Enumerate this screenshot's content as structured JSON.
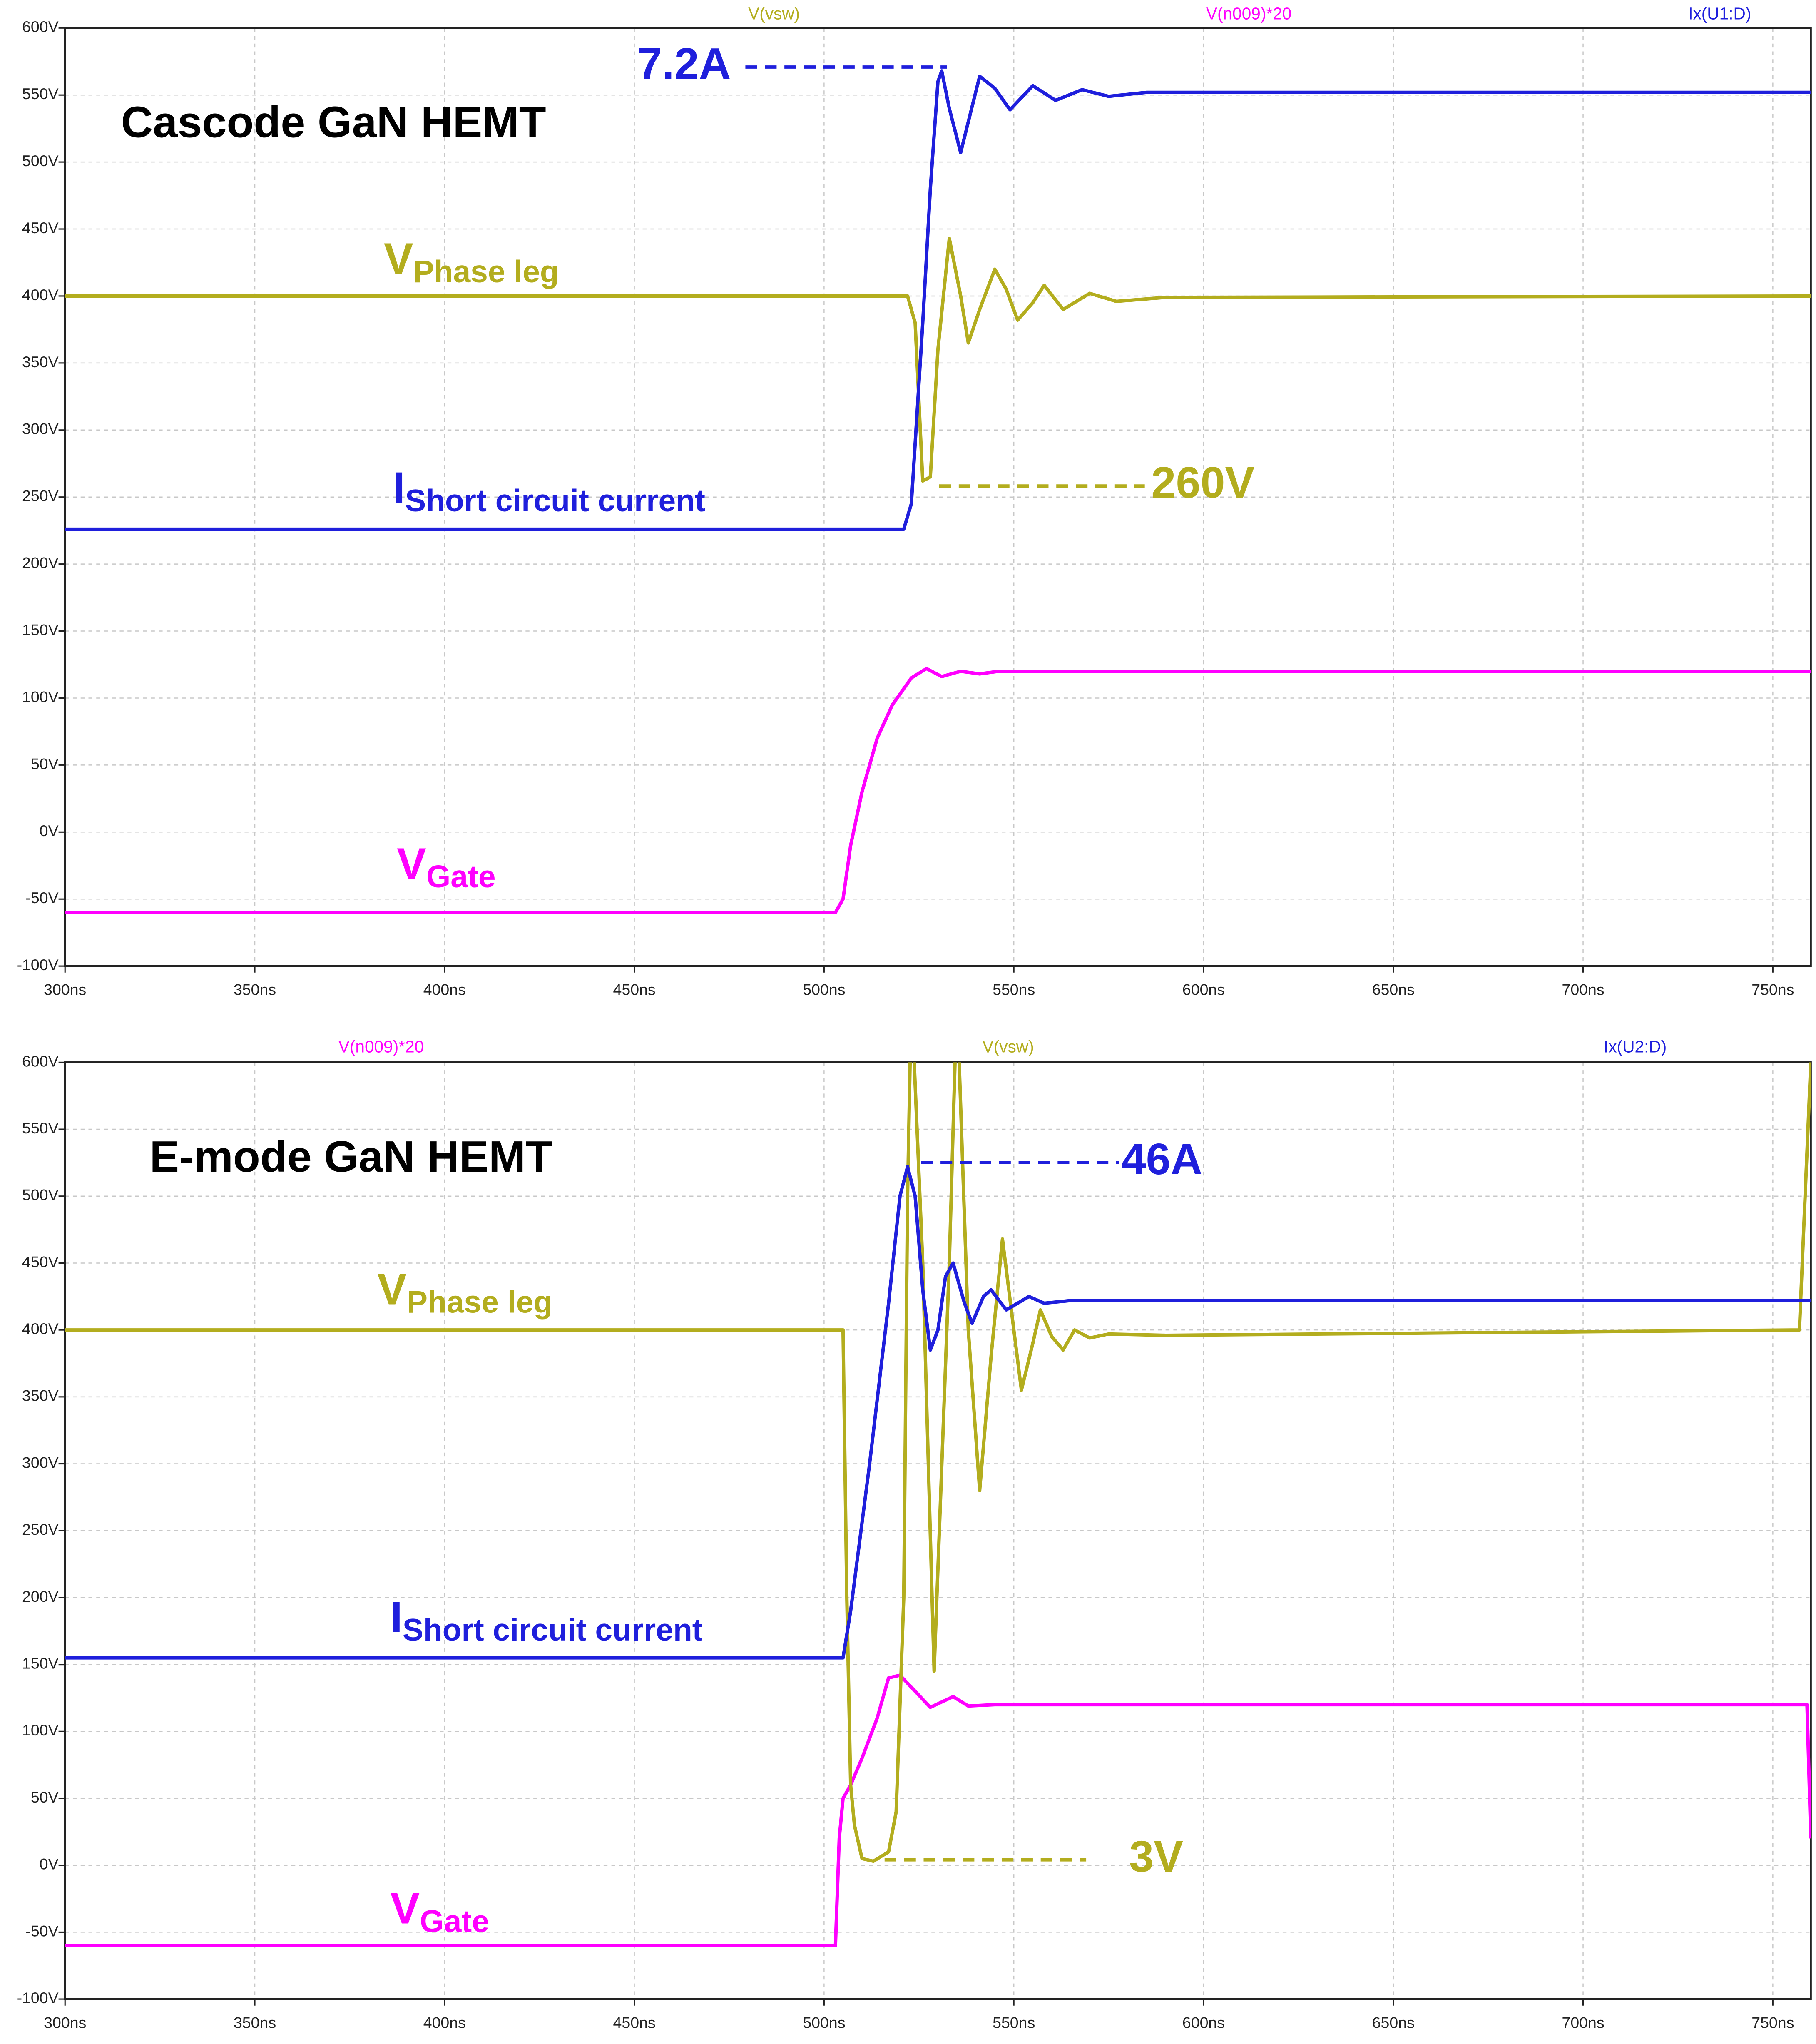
{
  "chart_data": [
    {
      "type": "line",
      "title": "Cascode GaN HEMT",
      "xlim": [
        300,
        760
      ],
      "ylim": [
        -100,
        600
      ],
      "grid": true,
      "xticks": [
        {
          "value": 300,
          "label": "300ns"
        },
        {
          "value": 350,
          "label": "350ns"
        },
        {
          "value": 400,
          "label": "400ns"
        },
        {
          "value": 450,
          "label": "450ns"
        },
        {
          "value": 500,
          "label": "500ns"
        },
        {
          "value": 550,
          "label": "550ns"
        },
        {
          "value": 600,
          "label": "600ns"
        },
        {
          "value": 650,
          "label": "650ns"
        },
        {
          "value": 700,
          "label": "700ns"
        },
        {
          "value": 750,
          "label": "750ns"
        }
      ],
      "yticks": [
        {
          "value": -100,
          "label": "-100V"
        },
        {
          "value": -50,
          "label": "-50V"
        },
        {
          "value": 0,
          "label": "0V"
        },
        {
          "value": 50,
          "label": "50V"
        },
        {
          "value": 100,
          "label": "100V"
        },
        {
          "value": 150,
          "label": "150V"
        },
        {
          "value": 200,
          "label": "200V"
        },
        {
          "value": 250,
          "label": "250V"
        },
        {
          "value": 300,
          "label": "300V"
        },
        {
          "value": 350,
          "label": "350V"
        },
        {
          "value": 400,
          "label": "400V"
        },
        {
          "value": 450,
          "label": "450V"
        },
        {
          "value": 500,
          "label": "500V"
        },
        {
          "value": 550,
          "label": "550V"
        },
        {
          "value": 600,
          "label": "600V"
        }
      ],
      "series": [
        {
          "name": "V(vsw)",
          "color": "#b3ad1e",
          "x": [
            300,
            522,
            524,
            526,
            528,
            530,
            533,
            536,
            538,
            541,
            545,
            548,
            551,
            555,
            558,
            563,
            570,
            577,
            590,
            760
          ],
          "values": [
            400,
            400,
            380,
            262,
            265,
            360,
            443,
            400,
            365,
            390,
            420,
            405,
            382,
            395,
            408,
            390,
            402,
            396,
            399,
            400
          ]
        },
        {
          "name": "V(n009)*20",
          "color": "#ff00ff",
          "x": [
            300,
            503,
            505,
            507,
            510,
            514,
            518,
            523,
            527,
            531,
            536,
            541,
            546,
            760
          ],
          "values": [
            -60,
            -60,
            -50,
            -10,
            30,
            70,
            95,
            115,
            122,
            116,
            120,
            118,
            120,
            120
          ]
        },
        {
          "name": "Ix(U1:D)",
          "color": "#1f1fdc",
          "x": [
            300,
            521,
            523,
            526,
            528,
            530,
            531,
            533,
            536,
            538,
            541,
            545,
            549,
            555,
            561,
            568,
            575,
            585,
            760
          ],
          "values": [
            226,
            226,
            245,
            380,
            480,
            560,
            568,
            540,
            507,
            530,
            564,
            555,
            539,
            557,
            546,
            554,
            549,
            552,
            552
          ]
        }
      ],
      "trace_labels": [
        {
          "symbol": "V",
          "subscript": "Phase leg",
          "color": "#b3ad1e"
        },
        {
          "symbol": "I",
          "subscript": "Short circuit current",
          "color": "#1f1fdc"
        },
        {
          "symbol": "V",
          "subscript": "Gate",
          "color": "#ff00ff"
        }
      ],
      "annotations": [
        {
          "text": "7.2A",
          "color": "#1f1fdc"
        },
        {
          "text": "260V",
          "color": "#b3ad1e"
        }
      ]
    },
    {
      "type": "line",
      "title": "E-mode GaN HEMT",
      "xlim": [
        300,
        760
      ],
      "ylim": [
        -100,
        600
      ],
      "grid": true,
      "xticks": [
        {
          "value": 300,
          "label": "300ns"
        },
        {
          "value": 350,
          "label": "350ns"
        },
        {
          "value": 400,
          "label": "400ns"
        },
        {
          "value": 450,
          "label": "450ns"
        },
        {
          "value": 500,
          "label": "500ns"
        },
        {
          "value": 550,
          "label": "550ns"
        },
        {
          "value": 600,
          "label": "600ns"
        },
        {
          "value": 650,
          "label": "650ns"
        },
        {
          "value": 700,
          "label": "700ns"
        },
        {
          "value": 750,
          "label": "750ns"
        }
      ],
      "yticks": [
        {
          "value": -100,
          "label": "-100V"
        },
        {
          "value": -50,
          "label": "-50V"
        },
        {
          "value": 0,
          "label": "0V"
        },
        {
          "value": 50,
          "label": "50V"
        },
        {
          "value": 100,
          "label": "100V"
        },
        {
          "value": 150,
          "label": "150V"
        },
        {
          "value": 200,
          "label": "200V"
        },
        {
          "value": 250,
          "label": "250V"
        },
        {
          "value": 300,
          "label": "300V"
        },
        {
          "value": 350,
          "label": "350V"
        },
        {
          "value": 400,
          "label": "400V"
        },
        {
          "value": 450,
          "label": "450V"
        },
        {
          "value": 500,
          "label": "500V"
        },
        {
          "value": 550,
          "label": "550V"
        },
        {
          "value": 600,
          "label": "600V"
        }
      ],
      "series": [
        {
          "name": "V(n009)*20",
          "color": "#ff00ff",
          "x": [
            300,
            503,
            504,
            505,
            507,
            510,
            514,
            517,
            520,
            524,
            528,
            531,
            534,
            538,
            545,
            759,
            760
          ],
          "values": [
            -60,
            -60,
            20,
            50,
            60,
            80,
            110,
            140,
            142,
            130,
            118,
            122,
            126,
            119,
            120,
            120,
            20
          ]
        },
        {
          "name": "V(vsw)",
          "color": "#b3ad1e",
          "x": [
            300,
            505,
            506,
            507,
            508,
            510,
            513,
            517,
            519,
            521,
            522,
            523,
            526,
            529,
            533,
            535,
            538,
            541,
            544,
            547,
            550,
            552,
            555,
            557,
            560,
            563,
            566,
            570,
            575,
            590,
            757,
            760
          ],
          "values": [
            400,
            400,
            200,
            60,
            30,
            5,
            3,
            10,
            40,
            200,
            500,
            650,
            450,
            145,
            450,
            650,
            400,
            280,
            380,
            468,
            400,
            355,
            390,
            415,
            395,
            385,
            400,
            394,
            397,
            396,
            400,
            600
          ]
        },
        {
          "name": "Ix(U2:D)",
          "color": "#1f1fdc",
          "x": [
            300,
            505,
            507,
            512,
            517,
            520,
            522,
            524,
            526,
            528,
            530,
            532,
            534,
            537,
            539,
            542,
            544,
            548,
            551,
            554,
            558,
            565,
            760
          ],
          "values": [
            155,
            155,
            190,
            300,
            420,
            500,
            522,
            500,
            430,
            385,
            400,
            440,
            450,
            420,
            405,
            425,
            430,
            415,
            420,
            425,
            420,
            422,
            422
          ]
        }
      ],
      "trace_labels": [
        {
          "symbol": "V",
          "subscript": "Phase leg",
          "color": "#b3ad1e"
        },
        {
          "symbol": "I",
          "subscript": "Short circuit current",
          "color": "#1f1fdc"
        },
        {
          "symbol": "V",
          "subscript": "Gate",
          "color": "#ff00ff"
        }
      ],
      "annotations": [
        {
          "text": "46A",
          "color": "#1f1fdc"
        },
        {
          "text": "3V",
          "color": "#b3ad1e"
        }
      ]
    }
  ]
}
